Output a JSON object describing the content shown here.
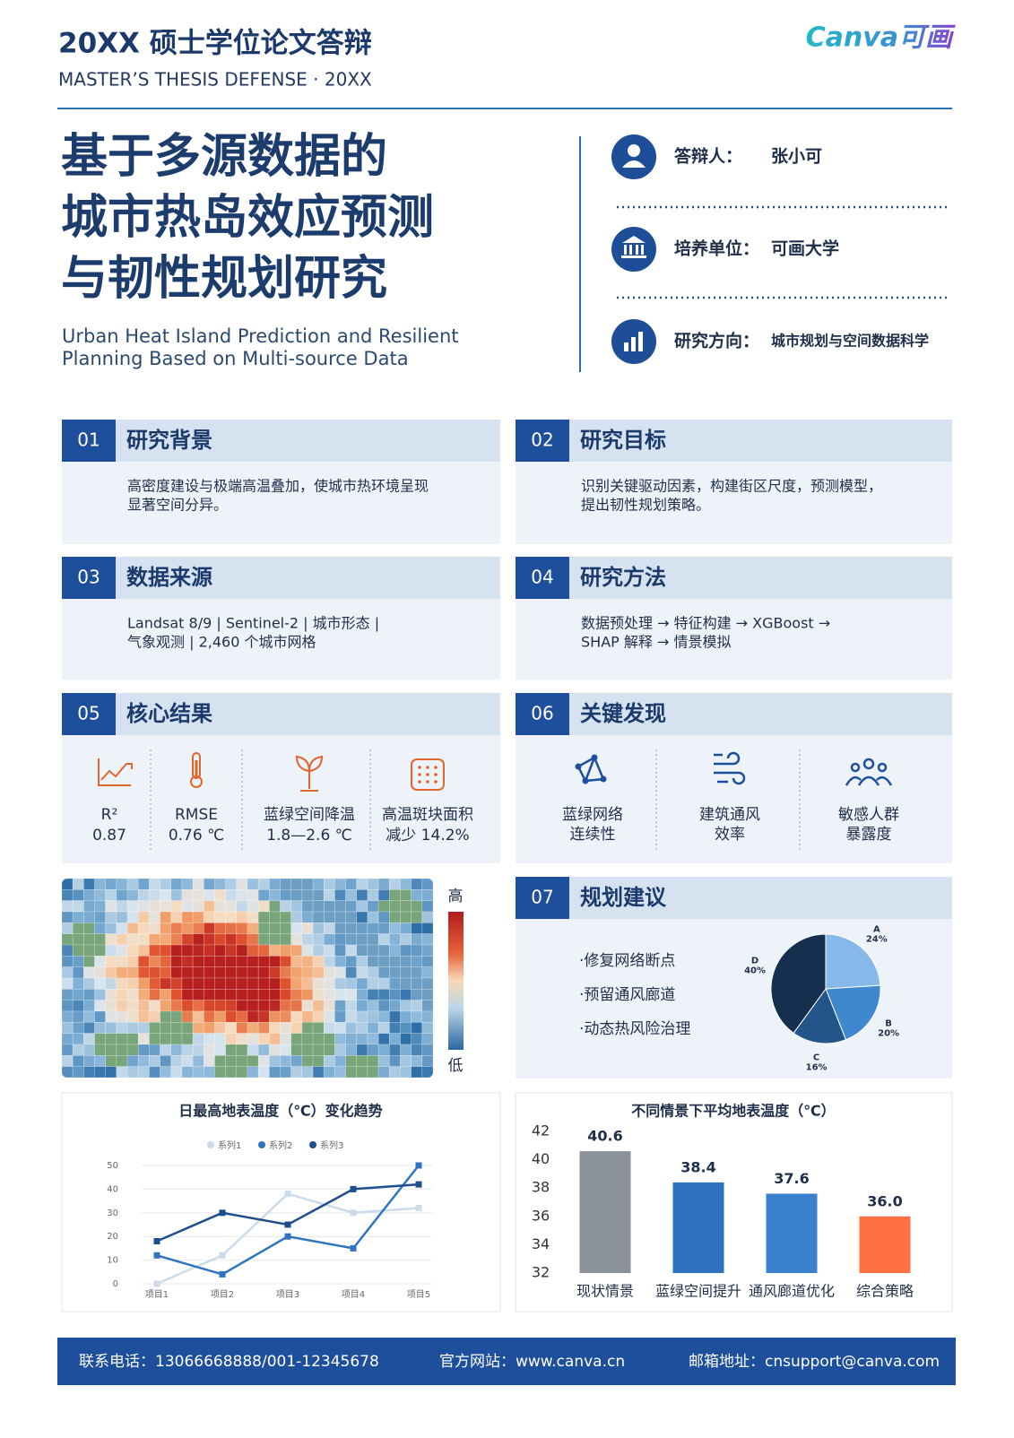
{
  "header": {
    "title": "20XX 硕士学位论文答辩",
    "subtitle": "MASTER’S THESIS DEFENSE · 20XX",
    "logo": "Canva可画"
  },
  "thesis": {
    "title_lines": [
      "基于多源数据的",
      "城市热岛效应预测",
      "与韧性规划研究"
    ],
    "english_lines": [
      "Urban Heat Island Prediction and Resilient",
      "Planning Based on Multi-source Data"
    ]
  },
  "info": [
    {
      "label": "答辩人：",
      "value": "张小可"
    },
    {
      "label": "培养单位：",
      "value": "可画大学"
    },
    {
      "label": "研究方向：",
      "value": "城市规划与空间数据科学"
    }
  ],
  "sections": [
    {
      "num": "01",
      "title": "研究背景",
      "lines": [
        "高密度建设与极端高温叠加，使城市热环境呈现",
        "显著空间分异。"
      ]
    },
    {
      "num": "02",
      "title": "研究目标",
      "lines": [
        "识别关键驱动因素，构建街区尺度，预测模型，",
        "提出韧性规划策略。"
      ]
    },
    {
      "num": "03",
      "title": "数据来源",
      "lines": [
        "Landsat 8/9 | Sentinel-2 | 城市形态 |",
        "气象观测 | 2,460 个城市网格"
      ]
    },
    {
      "num": "04",
      "title": "研究方法",
      "lines": [
        "数据预处理 → 特征构建 → XGBoost →",
        "SHAP 解释 → 情景模拟"
      ]
    },
    {
      "num": "05",
      "title": "核心结果",
      "items": [
        {
          "label": "R²",
          "value": "0.87"
        },
        {
          "label": "RMSE",
          "value": "0.76 ℃"
        },
        {
          "label": "蓝绿空间降温",
          "value": "1.8—2.6 ℃"
        },
        {
          "label": "高温斑块面积",
          "value": "减少 14.2%"
        }
      ]
    },
    {
      "num": "06",
      "title": "关键发现",
      "items": [
        [
          "蓝绿网络",
          "连续性"
        ],
        [
          "建筑通风",
          "效率"
        ],
        [
          "敏感人群",
          "暴露度"
        ]
      ]
    },
    {
      "num": "07",
      "title": "规划建议",
      "bullets": [
        "·修复网络断点",
        "·预留通风廊道",
        "·动态热风险治理"
      ]
    }
  ],
  "heatmap": {
    "high": "高",
    "low": "低"
  },
  "chart_data": [
    {
      "type": "pie",
      "categories": [
        "A",
        "B",
        "C",
        "D"
      ],
      "values": [
        24,
        20,
        16,
        40
      ],
      "value_labels": [
        "24%",
        "20%",
        "16%",
        "40%"
      ],
      "colors": [
        "#86b9ea",
        "#3f87cf",
        "#24558a",
        "#172f4f"
      ]
    },
    {
      "type": "line",
      "title": "日最高地表温度（℃）变化趋势",
      "categories": [
        "项目1",
        "项目2",
        "项目3",
        "项目4",
        "项目5"
      ],
      "series": [
        {
          "name": "系列1",
          "color": "#cbdbeb",
          "values": [
            0,
            12,
            38,
            30,
            32
          ]
        },
        {
          "name": "系列2",
          "color": "#2e74c0",
          "values": [
            12,
            4,
            20,
            15,
            50
          ]
        },
        {
          "name": "系列3",
          "color": "#1e4f8c",
          "values": [
            18,
            30,
            25,
            40,
            42
          ]
        }
      ],
      "ylim": [
        0,
        50
      ],
      "yticks": [
        0,
        10,
        20,
        30,
        40,
        50
      ],
      "grid": true
    },
    {
      "type": "bar",
      "title": "不同情景下平均地表温度（℃）",
      "categories": [
        "现状情景",
        "蓝绿空间提升",
        "通风廊道优化",
        "综合策略"
      ],
      "values": [
        40.6,
        38.4,
        37.6,
        36.0
      ],
      "value_labels": [
        "40.6",
        "38.4",
        "37.6",
        "36.0"
      ],
      "colors": [
        "#8b9199",
        "#2f72c1",
        "#3a80cc",
        "#ff7043"
      ],
      "ylim": [
        32,
        42
      ],
      "yticks": [
        32,
        34,
        36,
        38,
        40,
        42
      ],
      "grid": false
    }
  ],
  "footer": [
    "联系电话：13066668888/001-12345678",
    "官方网站：www.canva.cn",
    "邮箱地址：cnsupport@canva.com"
  ]
}
